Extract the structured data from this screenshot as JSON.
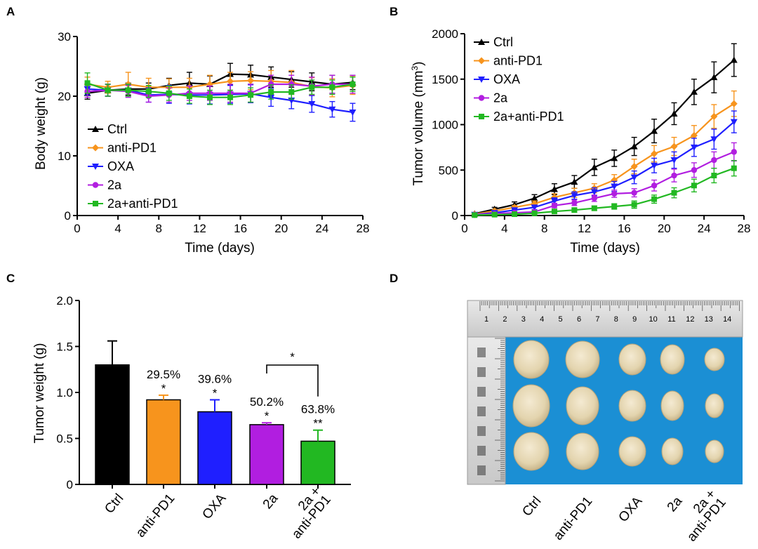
{
  "panel_labels": {
    "A": "A",
    "B": "B",
    "C": "C",
    "D": "D"
  },
  "colors": {
    "Ctrl": "#000000",
    "anti-PD1": "#f7941d",
    "OXA": "#1f1fff",
    "2a": "#b11ee0",
    "2a+anti-PD1": "#22b822"
  },
  "chart_data": [
    {
      "panel": "A",
      "type": "line",
      "xlabel": "Time (days)",
      "ylabel": "Body weight (g)",
      "xlim": [
        0,
        28
      ],
      "ylim": [
        0,
        30
      ],
      "xticks": [
        0,
        4,
        8,
        12,
        16,
        20,
        24,
        28
      ],
      "yticks": [
        0,
        10,
        20,
        30
      ],
      "legend_position": "bottom-left",
      "x": [
        1,
        3,
        5,
        7,
        9,
        11,
        13,
        15,
        17,
        19,
        21,
        23,
        25,
        27
      ],
      "series": [
        {
          "name": "Ctrl",
          "color": "#000000",
          "marker": "triangle",
          "values": [
            20.5,
            21.0,
            21.2,
            21.2,
            21.8,
            22.2,
            22.0,
            23.7,
            23.6,
            23.2,
            22.8,
            22.4,
            22.0,
            22.3
          ],
          "errors": [
            1.0,
            1.0,
            1.0,
            1.0,
            1.2,
            1.8,
            1.4,
            1.8,
            1.6,
            1.7,
            1.3,
            1.5,
            1.5,
            1.2
          ]
        },
        {
          "name": "anti-PD1",
          "color": "#f7941d",
          "marker": "diamond",
          "values": [
            22.0,
            21.5,
            22.0,
            21.5,
            21.5,
            21.5,
            22.0,
            22.5,
            22.6,
            22.5,
            22.3,
            21.6,
            21.4,
            21.8
          ],
          "errors": [
            1.2,
            1.0,
            2.0,
            1.5,
            1.4,
            1.5,
            1.5,
            1.5,
            1.5,
            1.8,
            2.0,
            1.5,
            1.5,
            1.5
          ]
        },
        {
          "name": "OXA",
          "color": "#1f1fff",
          "marker": "triangle-down",
          "values": [
            21.2,
            21.0,
            21.0,
            20.2,
            20.3,
            20.2,
            20.2,
            20.3,
            20.4,
            19.8,
            19.3,
            18.7,
            17.8,
            17.3
          ],
          "errors": [
            1.0,
            1.0,
            1.0,
            1.2,
            1.5,
            1.5,
            1.5,
            1.5,
            1.5,
            1.5,
            1.4,
            1.4,
            1.3,
            1.5
          ]
        },
        {
          "name": "2a",
          "color": "#b11ee0",
          "marker": "circle",
          "values": [
            20.8,
            21.0,
            20.8,
            20.0,
            20.2,
            20.5,
            20.5,
            20.5,
            20.5,
            22.0,
            22.0,
            21.7,
            22.0,
            22.0
          ],
          "errors": [
            1.0,
            1.0,
            1.0,
            1.0,
            1.2,
            1.2,
            1.2,
            1.5,
            1.5,
            1.5,
            1.5,
            1.5,
            1.5,
            1.5
          ]
        },
        {
          "name": "2a+anti-PD1",
          "color": "#22b822",
          "marker": "square",
          "values": [
            22.2,
            21.0,
            21.0,
            20.8,
            20.5,
            20.0,
            19.8,
            19.8,
            20.2,
            20.7,
            20.7,
            21.5,
            21.5,
            22.0
          ],
          "errors": [
            1.7,
            1.0,
            1.0,
            1.0,
            1.2,
            1.2,
            1.2,
            1.2,
            1.2,
            1.2,
            1.2,
            1.2,
            1.2,
            1.2
          ]
        }
      ]
    },
    {
      "panel": "B",
      "type": "line",
      "xlabel": "Time (days)",
      "ylabel_prefix": "Tumor volume (mm",
      "ylabel_sup": "3",
      "ylabel_suffix": ")",
      "xlim": [
        0,
        28
      ],
      "ylim": [
        0,
        2000
      ],
      "xticks": [
        0,
        4,
        8,
        12,
        16,
        20,
        24,
        28
      ],
      "yticks": [
        0,
        500,
        1000,
        1500,
        2000
      ],
      "legend_position": "top-left",
      "x": [
        1,
        3,
        5,
        7,
        9,
        11,
        13,
        15,
        17,
        19,
        21,
        23,
        25,
        27
      ],
      "series": [
        {
          "name": "Ctrl",
          "color": "#000000",
          "marker": "triangle",
          "values": [
            20,
            70,
            120,
            190,
            290,
            370,
            530,
            630,
            760,
            930,
            1120,
            1360,
            1520,
            1710
          ],
          "errors": [
            10,
            20,
            30,
            40,
            60,
            70,
            90,
            90,
            100,
            130,
            120,
            140,
            170,
            180
          ]
        },
        {
          "name": "anti-PD1",
          "color": "#f7941d",
          "marker": "diamond",
          "values": [
            15,
            50,
            90,
            130,
            200,
            250,
            300,
            390,
            540,
            680,
            760,
            880,
            1090,
            1230
          ],
          "errors": [
            8,
            15,
            20,
            30,
            40,
            50,
            50,
            60,
            80,
            90,
            100,
            110,
            130,
            140
          ]
        },
        {
          "name": "OXA",
          "color": "#1f1fff",
          "marker": "triangle-down",
          "values": [
            10,
            30,
            60,
            90,
            160,
            220,
            260,
            320,
            420,
            550,
            610,
            750,
            840,
            1030
          ],
          "errors": [
            5,
            10,
            15,
            25,
            35,
            40,
            45,
            55,
            70,
            80,
            90,
            100,
            110,
            120
          ]
        },
        {
          "name": "2a",
          "color": "#b11ee0",
          "marker": "circle",
          "values": [
            8,
            20,
            30,
            40,
            110,
            140,
            190,
            240,
            250,
            330,
            440,
            500,
            610,
            700
          ],
          "errors": [
            4,
            8,
            10,
            15,
            25,
            30,
            35,
            40,
            45,
            60,
            70,
            80,
            90,
            100
          ]
        },
        {
          "name": "2a+anti-PD1",
          "color": "#22b822",
          "marker": "square",
          "values": [
            5,
            10,
            15,
            25,
            45,
            60,
            80,
            100,
            120,
            180,
            250,
            330,
            440,
            520
          ],
          "errors": [
            3,
            5,
            8,
            10,
            15,
            20,
            25,
            30,
            40,
            45,
            55,
            70,
            80,
            85
          ]
        }
      ]
    },
    {
      "panel": "C",
      "type": "bar",
      "ylabel": "Tumor weight (g)",
      "ylim": [
        0,
        2.0
      ],
      "yticks": [
        "0",
        "0.5",
        "1.0",
        "1.5",
        "2.0"
      ],
      "ytick_values": [
        0,
        0.5,
        1.0,
        1.5,
        2.0
      ],
      "categories": [
        "Ctrl",
        "anti-PD1",
        "OXA",
        "2a",
        "2a + anti-PD1"
      ],
      "category_lines": [
        [
          "Ctrl"
        ],
        [
          "anti-PD1"
        ],
        [
          "OXA"
        ],
        [
          "2a"
        ],
        [
          "2a +",
          "anti-PD1"
        ]
      ],
      "bar_colors": [
        "#000000",
        "#f7941d",
        "#1f1fff",
        "#b11ee0",
        "#22b822"
      ],
      "values": [
        1.3,
        0.92,
        0.79,
        0.65,
        0.47
      ],
      "errors": [
        0.26,
        0.05,
        0.13,
        0.02,
        0.12
      ],
      "inhibition_labels": [
        "",
        "29.5%",
        "39.6%",
        "50.2%",
        "63.8%"
      ],
      "significance": [
        "",
        "*",
        "*",
        "*",
        "**"
      ],
      "bracket": {
        "from": "2a",
        "to": "2a + anti-PD1",
        "label": "*"
      }
    }
  ],
  "photo_panel": {
    "panel": "D",
    "ruler_numbers": [
      "1",
      "2",
      "3",
      "4",
      "5",
      "6",
      "7",
      "8",
      "9",
      "10",
      "11",
      "12",
      "13",
      "14"
    ],
    "column_labels": [
      "Ctrl",
      "anti-PD1",
      "OXA",
      "2a",
      "2a + anti-PD1"
    ],
    "column_label_lines": [
      [
        "Ctrl"
      ],
      [
        "anti-PD1"
      ],
      [
        "OXA"
      ],
      [
        "2a"
      ],
      [
        "2a +",
        "anti-PD1"
      ]
    ]
  }
}
